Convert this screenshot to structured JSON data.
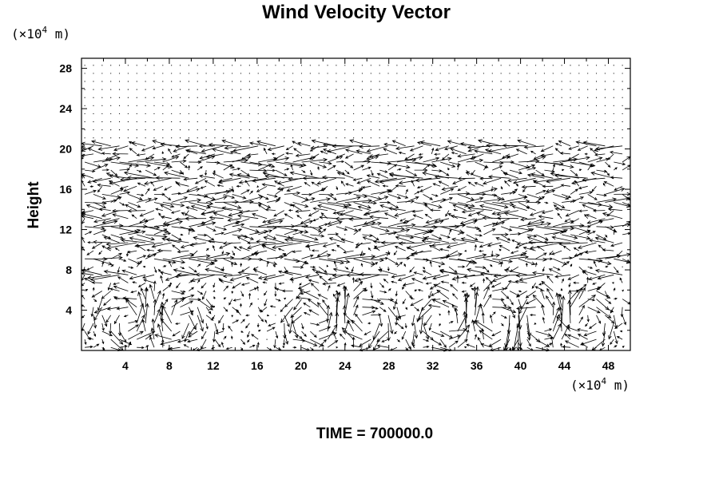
{
  "chart_data": {
    "type": "quiver",
    "title": "Wind Velocity Vector",
    "ylabel": "Height",
    "xlabel": "",
    "x_unit": {
      "prefix": "(×10",
      "exp": "4",
      "suffix": " m)"
    },
    "y_unit": {
      "prefix": "(×10",
      "exp": "4",
      "suffix": " m)"
    },
    "xlim": [
      0,
      50
    ],
    "ylim": [
      0,
      29
    ],
    "xticks": [
      4,
      8,
      12,
      16,
      20,
      24,
      28,
      32,
      36,
      40,
      44,
      48
    ],
    "yticks": [
      4,
      8,
      12,
      16,
      20,
      24,
      28
    ],
    "grid": false,
    "vector_grid": {
      "nx": 63,
      "ny": 36,
      "dx": 0.79,
      "dy": 0.8
    },
    "circulation_features": [
      {
        "kind": "jet",
        "height": 20,
        "direction": -1,
        "speed": 4.5
      },
      {
        "kind": "jet",
        "height": 18.5,
        "direction": 1,
        "speed": 4.5
      },
      {
        "kind": "jet",
        "height": 17,
        "direction": -1,
        "speed": 4.5
      },
      {
        "kind": "jet",
        "height": 15,
        "direction": 1,
        "speed": 4.5
      },
      {
        "kind": "jet",
        "height": 13.5,
        "direction": -1,
        "speed": 4.5
      },
      {
        "kind": "jet",
        "height": 12,
        "direction": 1,
        "speed": 5
      },
      {
        "kind": "jet",
        "height": 10.5,
        "direction": -1,
        "speed": 4.5
      },
      {
        "kind": "jet",
        "height": 9,
        "direction": 1,
        "speed": 4
      },
      {
        "kind": "jet",
        "height": 7.5,
        "direction": -1,
        "speed": 4
      },
      {
        "kind": "cell",
        "x": 4,
        "z": 3,
        "strength": 5
      },
      {
        "kind": "cell",
        "x": 9,
        "z": 3,
        "strength": -5
      },
      {
        "kind": "cell",
        "x": 21,
        "z": 3,
        "strength": 5
      },
      {
        "kind": "cell",
        "x": 26,
        "z": 3,
        "strength": -5
      },
      {
        "kind": "cell",
        "x": 33,
        "z": 3,
        "strength": 5
      },
      {
        "kind": "cell",
        "x": 38,
        "z": 3,
        "strength": -5
      },
      {
        "kind": "cell",
        "x": 41.5,
        "z": 3,
        "strength": 5
      },
      {
        "kind": "cell",
        "x": 46,
        "z": 3,
        "strength": -5
      }
    ],
    "weak_flow_above": 20.5
  },
  "footer": {
    "time_label": "TIME = 700000.0"
  }
}
